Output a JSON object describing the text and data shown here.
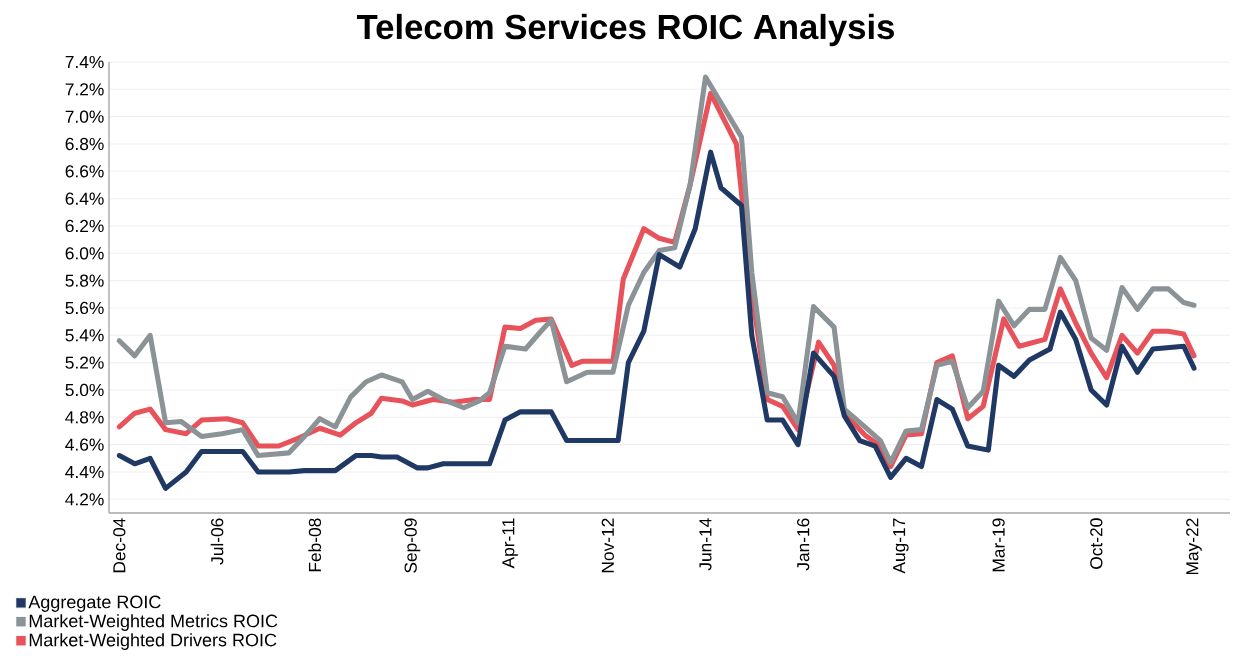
{
  "chart_data": {
    "type": "line",
    "title": "Telecom Services ROIC Analysis",
    "xlim": [
      "2004-10",
      "2022-12"
    ],
    "xticks": [
      {
        "value": "2004-12",
        "label": "Dec-04"
      },
      {
        "value": "2006-07",
        "label": "Jul-06"
      },
      {
        "value": "2008-02",
        "label": "Feb-08"
      },
      {
        "value": "2009-09",
        "label": "Sep-09"
      },
      {
        "value": "2011-04",
        "label": "Apr-11"
      },
      {
        "value": "2012-11",
        "label": "Nov-12"
      },
      {
        "value": "2014-06",
        "label": "Jun-14"
      },
      {
        "value": "2016-01",
        "label": "Jan-16"
      },
      {
        "value": "2017-08",
        "label": "Aug-17"
      },
      {
        "value": "2019-03",
        "label": "Mar-19"
      },
      {
        "value": "2020-10",
        "label": "Oct-20"
      },
      {
        "value": "2022-05",
        "label": "May-22"
      }
    ],
    "ylim": [
      4.1,
      7.4
    ],
    "yticks": [
      {
        "value": 4.2,
        "label": "4.2%"
      },
      {
        "value": 4.4,
        "label": "4.4%"
      },
      {
        "value": 4.6,
        "label": "4.6%"
      },
      {
        "value": 4.8,
        "label": "4.8%"
      },
      {
        "value": 5.0,
        "label": "5.0%"
      },
      {
        "value": 5.2,
        "label": "5.2%"
      },
      {
        "value": 5.4,
        "label": "5.4%"
      },
      {
        "value": 5.6,
        "label": "5.6%"
      },
      {
        "value": 5.8,
        "label": "5.8%"
      },
      {
        "value": 6.0,
        "label": "6.0%"
      },
      {
        "value": 6.2,
        "label": "6.2%"
      },
      {
        "value": 6.4,
        "label": "6.4%"
      },
      {
        "value": 6.6,
        "label": "6.6%"
      },
      {
        "value": 6.8,
        "label": "6.8%"
      },
      {
        "value": 7.0,
        "label": "7.0%"
      },
      {
        "value": 7.2,
        "label": "7.2%"
      },
      {
        "value": 7.4,
        "label": "7.4%"
      }
    ],
    "grid": "y",
    "legend": "bottom left",
    "series": [
      {
        "name": "Aggregate ROIC",
        "color": "#1f3864",
        "x": [
          "2004-12",
          "2005-03",
          "2005-06",
          "2005-09",
          "2006-01",
          "2006-04",
          "2006-12",
          "2007-03",
          "2007-09",
          "2007-12",
          "2008-06",
          "2008-10",
          "2009-01",
          "2009-03",
          "2009-06",
          "2009-10",
          "2009-12",
          "2010-03",
          "2010-12",
          "2011-03",
          "2011-06",
          "2011-12",
          "2012-03",
          "2012-12",
          "2013-01",
          "2013-03",
          "2013-06",
          "2013-09",
          "2014-01",
          "2014-04",
          "2014-07",
          "2014-09",
          "2015-01",
          "2015-03",
          "2015-06",
          "2015-09",
          "2015-12",
          "2016-03",
          "2016-07",
          "2016-09",
          "2016-12",
          "2017-03",
          "2017-06",
          "2017-09",
          "2017-12",
          "2018-03",
          "2018-06",
          "2018-09",
          "2019-01",
          "2019-03",
          "2019-06",
          "2019-09",
          "2020-01",
          "2020-03",
          "2020-06",
          "2020-09",
          "2020-12",
          "2021-03",
          "2021-06",
          "2021-09",
          "2022-03",
          "2022-05"
        ],
        "values": [
          4.52,
          4.46,
          4.5,
          4.28,
          4.4,
          4.55,
          4.55,
          4.4,
          4.4,
          4.41,
          4.41,
          4.52,
          4.52,
          4.51,
          4.51,
          4.43,
          4.43,
          4.46,
          4.46,
          4.78,
          4.84,
          4.84,
          4.63,
          4.63,
          4.63,
          5.2,
          5.43,
          5.99,
          5.9,
          6.18,
          6.74,
          6.48,
          6.35,
          5.4,
          4.78,
          4.78,
          4.6,
          5.27,
          5.1,
          4.81,
          4.63,
          4.59,
          4.36,
          4.5,
          4.44,
          4.93,
          4.86,
          4.59,
          4.56,
          5.18,
          5.1,
          5.22,
          5.3,
          5.57,
          5.37,
          5.0,
          4.89,
          5.32,
          5.13,
          5.3,
          5.32,
          5.16
        ]
      },
      {
        "name": "Market-Weighted Metrics ROIC",
        "color": "#8c9396",
        "x": [
          "2004-12",
          "2005-03",
          "2005-06",
          "2005-09",
          "2005-12",
          "2006-04",
          "2006-08",
          "2006-12",
          "2007-03",
          "2007-09",
          "2007-12",
          "2008-03",
          "2008-06",
          "2008-09",
          "2008-12",
          "2009-03",
          "2009-07",
          "2009-09",
          "2009-12",
          "2010-03",
          "2010-07",
          "2010-10",
          "2010-12",
          "2011-03",
          "2011-07",
          "2011-10",
          "2011-12",
          "2012-03",
          "2012-07",
          "2012-12",
          "2013-03",
          "2013-06",
          "2013-09",
          "2013-12",
          "2014-03",
          "2014-06",
          "2014-10",
          "2015-01",
          "2015-03",
          "2015-06",
          "2015-09",
          "2015-12",
          "2016-03",
          "2016-07",
          "2016-09",
          "2017-01",
          "2017-04",
          "2017-06",
          "2017-09",
          "2017-12",
          "2018-03",
          "2018-06",
          "2018-09",
          "2018-12",
          "2019-03",
          "2019-06",
          "2019-09",
          "2019-12",
          "2020-03",
          "2020-06",
          "2020-09",
          "2020-12",
          "2021-03",
          "2021-06",
          "2021-09",
          "2021-12",
          "2022-03",
          "2022-05"
        ],
        "values": [
          5.36,
          5.25,
          5.4,
          4.76,
          4.77,
          4.66,
          4.68,
          4.71,
          4.52,
          4.54,
          4.66,
          4.79,
          4.73,
          4.95,
          5.06,
          5.11,
          5.06,
          4.93,
          4.99,
          4.93,
          4.87,
          4.92,
          4.98,
          5.32,
          5.3,
          5.43,
          5.51,
          5.06,
          5.13,
          5.13,
          5.62,
          5.86,
          6.02,
          6.04,
          6.5,
          7.29,
          7.04,
          6.85,
          5.86,
          4.98,
          4.95,
          4.76,
          5.61,
          5.46,
          4.86,
          4.73,
          4.63,
          4.47,
          4.7,
          4.71,
          5.18,
          5.21,
          4.87,
          4.99,
          5.65,
          5.47,
          5.59,
          5.59,
          5.97,
          5.8,
          5.38,
          5.29,
          5.75,
          5.59,
          5.74,
          5.74,
          5.64,
          5.62
        ]
      },
      {
        "name": "Market-Weighted Drivers ROIC",
        "color": "#e8525a",
        "x": [
          "2004-12",
          "2005-03",
          "2005-06",
          "2005-09",
          "2006-01",
          "2006-04",
          "2006-09",
          "2006-12",
          "2007-03",
          "2007-07",
          "2007-11",
          "2008-03",
          "2008-07",
          "2008-10",
          "2009-01",
          "2009-03",
          "2009-07",
          "2009-09",
          "2010-01",
          "2010-05",
          "2010-09",
          "2010-12",
          "2011-03",
          "2011-06",
          "2011-09",
          "2011-12",
          "2012-04",
          "2012-06",
          "2012-12",
          "2013-02",
          "2013-06",
          "2013-09",
          "2013-12",
          "2014-03",
          "2014-07",
          "2014-12",
          "2015-03",
          "2015-06",
          "2015-09",
          "2015-12",
          "2016-04",
          "2016-07",
          "2016-09",
          "2017-01",
          "2017-04",
          "2017-06",
          "2017-09",
          "2017-12",
          "2018-03",
          "2018-06",
          "2018-09",
          "2018-12",
          "2019-04",
          "2019-07",
          "2019-09",
          "2019-12",
          "2020-03",
          "2020-06",
          "2020-09",
          "2020-12",
          "2021-03",
          "2021-06",
          "2021-09",
          "2021-12",
          "2022-03",
          "2022-05"
        ],
        "values": [
          4.73,
          4.83,
          4.86,
          4.71,
          4.68,
          4.78,
          4.79,
          4.76,
          4.59,
          4.59,
          4.65,
          4.72,
          4.67,
          4.76,
          4.83,
          4.94,
          4.92,
          4.89,
          4.93,
          4.91,
          4.93,
          4.93,
          5.46,
          5.45,
          5.51,
          5.52,
          5.18,
          5.21,
          5.21,
          5.81,
          6.18,
          6.11,
          6.08,
          6.5,
          7.17,
          6.8,
          5.72,
          4.93,
          4.88,
          4.71,
          5.35,
          5.18,
          4.83,
          4.67,
          4.59,
          4.44,
          4.67,
          4.68,
          5.2,
          5.25,
          4.79,
          4.88,
          5.52,
          5.32,
          5.34,
          5.37,
          5.74,
          5.49,
          5.27,
          5.09,
          5.4,
          5.27,
          5.43,
          5.43,
          5.41,
          5.25
        ]
      }
    ]
  }
}
